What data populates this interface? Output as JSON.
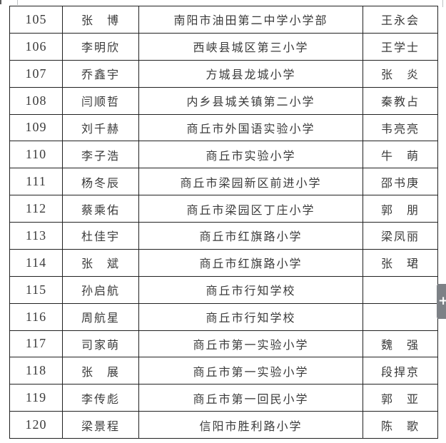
{
  "table": {
    "border_color": "#212121",
    "text_color": "#3a3a3a",
    "columns": [
      "number",
      "name",
      "school",
      "teacher"
    ],
    "rows": [
      {
        "number": "105",
        "name": "张　博",
        "school": "南阳市油田第二中学小学部",
        "teacher": "王永会"
      },
      {
        "number": "106",
        "name": "李明欣",
        "school": "西峡县城区第三小学",
        "teacher": "王学士"
      },
      {
        "number": "107",
        "name": "乔鑫宇",
        "school": "方城县龙城小学",
        "teacher": "张　炎"
      },
      {
        "number": "108",
        "name": "闫顺哲",
        "school": "内乡县城关镇第二小学",
        "teacher": "秦教占"
      },
      {
        "number": "109",
        "name": "刘千赫",
        "school": "商丘市外国语实验小学",
        "teacher": "韦亮亮"
      },
      {
        "number": "110",
        "name": "李子浩",
        "school": "商丘市实验小学",
        "teacher": "牛　萌"
      },
      {
        "number": "111",
        "name": "杨冬辰",
        "school": "商丘市梁园新区前进小学",
        "teacher": "邵书庚"
      },
      {
        "number": "112",
        "name": "蔡乘佑",
        "school": "商丘市梁园区丁庄小学",
        "teacher": "郭　朋"
      },
      {
        "number": "113",
        "name": "杜佳宇",
        "school": "商丘市红旗路小学",
        "teacher": "梁凤丽"
      },
      {
        "number": "114",
        "name": "张　斌",
        "school": "商丘市红旗路小学",
        "teacher": "张　珺"
      },
      {
        "number": "115",
        "name": "孙启航",
        "school": "商丘市行知学校",
        "teacher": ""
      },
      {
        "number": "116",
        "name": "周航星",
        "school": "商丘市行知学校",
        "teacher": ""
      },
      {
        "number": "117",
        "name": "司家萌",
        "school": "商丘市第一实验小学",
        "teacher": "魏　强"
      },
      {
        "number": "118",
        "name": "张　展",
        "school": "商丘市第一实验小学",
        "teacher": "段捍京"
      },
      {
        "number": "119",
        "name": "李传彪",
        "school": "商丘市第一回民小学",
        "teacher": "郭　亚"
      },
      {
        "number": "120",
        "name": "梁景程",
        "school": "信阳市胜利路小学",
        "teacher": "陈　歌"
      }
    ]
  },
  "overlay": {
    "plus_button": {
      "symbol": "+",
      "background": "#7d8186",
      "symbol_color": "#ffffff"
    }
  }
}
